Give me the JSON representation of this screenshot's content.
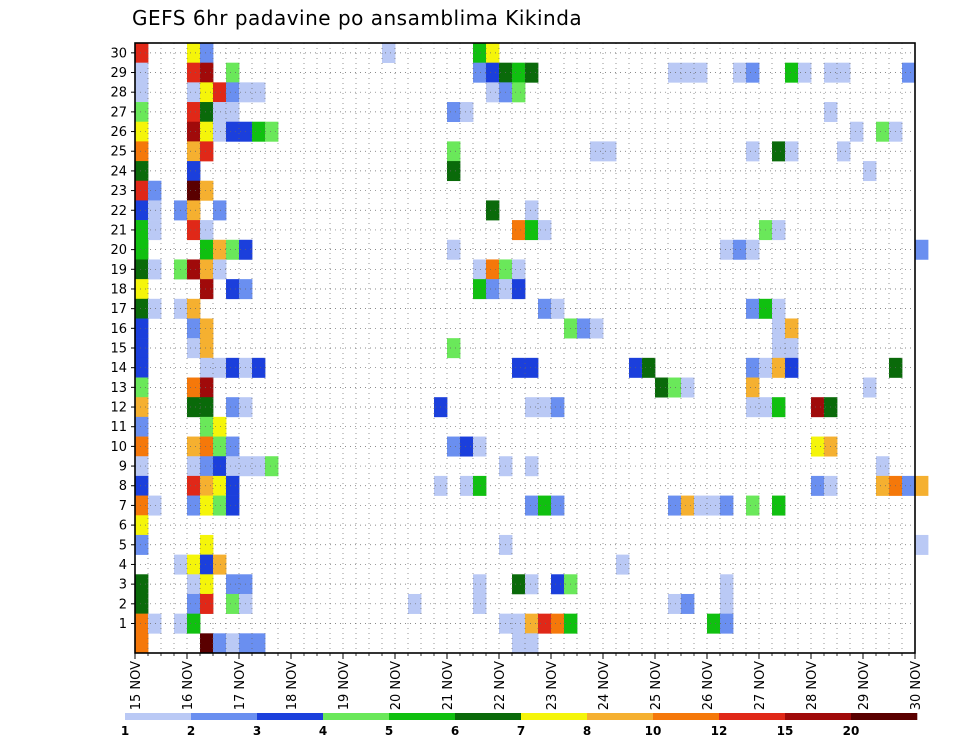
{
  "chart_data": {
    "type": "heatmap",
    "title": "GEFS 6hr padavine po ansamblima Kikinda",
    "x_ticks": [
      "15 NOV",
      "16 NOV",
      "17 NOV",
      "18 NOV",
      "19 NOV",
      "20 NOV",
      "21 NOV",
      "22 NOV",
      "23 NOV",
      "24 NOV",
      "25 NOV",
      "26 NOV",
      "27 NOV",
      "28 NOV",
      "29 NOV",
      "30 NOV"
    ],
    "xlim": [
      "15 NOV 00Z",
      "30 NOV 00Z"
    ],
    "time_step_hours": 6,
    "y_ticks": [
      "1",
      "2",
      "3",
      "4",
      "5",
      "6",
      "7",
      "8",
      "9",
      "10",
      "11",
      "12",
      "13",
      "14",
      "15",
      "16",
      "17",
      "18",
      "19",
      "20",
      "21",
      "22",
      "23",
      "24",
      "25",
      "26",
      "27",
      "28",
      "29",
      "30"
    ],
    "ylim": [
      0,
      30
    ],
    "grid": true,
    "colorbar": {
      "levels": [
        1,
        2,
        3,
        4,
        5,
        6,
        7,
        8,
        10,
        12,
        15,
        20
      ],
      "labels": [
        "1",
        "2",
        "3",
        "4",
        "5",
        "6",
        "7",
        "8",
        "10",
        "12",
        "15",
        "20"
      ],
      "colors": [
        "#bac9f5",
        "#6a8ff0",
        "#1b3fdc",
        "#6ae85a",
        "#10c010",
        "#0a6a0a",
        "#f5f50a",
        "#f5b030",
        "#f5780a",
        "#e02818",
        "#a00a0a",
        "#5a0000"
      ]
    },
    "series": [
      {
        "member": 30,
        "cells": [
          [
            0,
            9
          ],
          [
            4,
            6
          ],
          [
            5,
            1
          ],
          [
            19,
            0
          ],
          [
            26,
            4
          ],
          [
            27,
            6
          ]
        ]
      },
      {
        "member": 29,
        "cells": [
          [
            0,
            0
          ],
          [
            4,
            9
          ],
          [
            5,
            10
          ],
          [
            7,
            3
          ],
          [
            26,
            1
          ],
          [
            27,
            2
          ],
          [
            28,
            5
          ],
          [
            29,
            4
          ],
          [
            30,
            5
          ],
          [
            41,
            0
          ],
          [
            42,
            0
          ],
          [
            43,
            0
          ],
          [
            46,
            0
          ],
          [
            47,
            1
          ],
          [
            50,
            4
          ],
          [
            51,
            0
          ],
          [
            53,
            0
          ],
          [
            54,
            0
          ],
          [
            59,
            1
          ]
        ]
      },
      {
        "member": 28,
        "cells": [
          [
            0,
            0
          ],
          [
            4,
            0
          ],
          [
            5,
            6
          ],
          [
            6,
            9
          ],
          [
            7,
            1
          ],
          [
            8,
            0
          ],
          [
            9,
            0
          ],
          [
            27,
            0
          ],
          [
            28,
            1
          ],
          [
            29,
            3
          ]
        ]
      },
      {
        "member": 27,
        "cells": [
          [
            0,
            3
          ],
          [
            4,
            9
          ],
          [
            5,
            5
          ],
          [
            6,
            0
          ],
          [
            7,
            0
          ],
          [
            24,
            1
          ],
          [
            25,
            0
          ],
          [
            53,
            0
          ]
        ]
      },
      {
        "member": 26,
        "cells": [
          [
            0,
            6
          ],
          [
            4,
            10
          ],
          [
            5,
            6
          ],
          [
            6,
            0
          ],
          [
            7,
            2
          ],
          [
            8,
            2
          ],
          [
            9,
            4
          ],
          [
            10,
            3
          ],
          [
            55,
            0
          ],
          [
            57,
            3
          ],
          [
            58,
            0
          ]
        ]
      },
      {
        "member": 25,
        "cells": [
          [
            0,
            8
          ],
          [
            4,
            7
          ],
          [
            5,
            9
          ],
          [
            24,
            3
          ],
          [
            35,
            0
          ],
          [
            36,
            0
          ],
          [
            47,
            0
          ],
          [
            49,
            5
          ],
          [
            50,
            0
          ],
          [
            54,
            0
          ]
        ]
      },
      {
        "member": 24,
        "cells": [
          [
            0,
            5
          ],
          [
            4,
            2
          ],
          [
            24,
            5
          ],
          [
            56,
            0
          ]
        ]
      },
      {
        "member": 23,
        "cells": [
          [
            0,
            9
          ],
          [
            1,
            1
          ],
          [
            4,
            11
          ],
          [
            5,
            7
          ]
        ]
      },
      {
        "member": 22,
        "cells": [
          [
            0,
            2
          ],
          [
            1,
            0
          ],
          [
            3,
            1
          ],
          [
            4,
            7
          ],
          [
            6,
            1
          ],
          [
            27,
            5
          ],
          [
            30,
            0
          ]
        ]
      },
      {
        "member": 21,
        "cells": [
          [
            0,
            4
          ],
          [
            1,
            0
          ],
          [
            4,
            9
          ],
          [
            5,
            0
          ],
          [
            29,
            8
          ],
          [
            30,
            4
          ],
          [
            31,
            0
          ],
          [
            48,
            3
          ],
          [
            49,
            0
          ]
        ]
      },
      {
        "member": 20,
        "cells": [
          [
            0,
            4
          ],
          [
            5,
            4
          ],
          [
            6,
            7
          ],
          [
            7,
            3
          ],
          [
            8,
            2
          ],
          [
            24,
            0
          ],
          [
            45,
            0
          ],
          [
            46,
            1
          ],
          [
            47,
            0
          ],
          [
            60,
            1
          ]
        ]
      },
      {
        "member": 19,
        "cells": [
          [
            0,
            5
          ],
          [
            1,
            0
          ],
          [
            3,
            3
          ],
          [
            4,
            10
          ],
          [
            5,
            7
          ],
          [
            6,
            0
          ],
          [
            26,
            0
          ],
          [
            27,
            8
          ],
          [
            28,
            3
          ],
          [
            29,
            0
          ]
        ]
      },
      {
        "member": 18,
        "cells": [
          [
            0,
            6
          ],
          [
            5,
            10
          ],
          [
            7,
            2
          ],
          [
            8,
            1
          ],
          [
            26,
            4
          ],
          [
            27,
            1
          ],
          [
            28,
            0
          ],
          [
            29,
            2
          ]
        ]
      },
      {
        "member": 17,
        "cells": [
          [
            0,
            5
          ],
          [
            1,
            0
          ],
          [
            3,
            0
          ],
          [
            4,
            7
          ],
          [
            31,
            1
          ],
          [
            32,
            0
          ],
          [
            47,
            1
          ],
          [
            48,
            4
          ],
          [
            49,
            0
          ]
        ]
      },
      {
        "member": 16,
        "cells": [
          [
            0,
            2
          ],
          [
            4,
            1
          ],
          [
            5,
            7
          ],
          [
            33,
            3
          ],
          [
            34,
            1
          ],
          [
            35,
            0
          ],
          [
            49,
            0
          ],
          [
            50,
            7
          ]
        ]
      },
      {
        "member": 15,
        "cells": [
          [
            0,
            2
          ],
          [
            4,
            0
          ],
          [
            5,
            7
          ],
          [
            24,
            3
          ],
          [
            49,
            0
          ],
          [
            50,
            0
          ]
        ]
      },
      {
        "member": 14,
        "cells": [
          [
            0,
            2
          ],
          [
            5,
            0
          ],
          [
            6,
            0
          ],
          [
            7,
            2
          ],
          [
            8,
            0
          ],
          [
            9,
            2
          ],
          [
            29,
            2
          ],
          [
            30,
            2
          ],
          [
            38,
            2
          ],
          [
            39,
            5
          ],
          [
            47,
            1
          ],
          [
            48,
            0
          ],
          [
            49,
            7
          ],
          [
            50,
            2
          ],
          [
            58,
            5
          ]
        ]
      },
      {
        "member": 13,
        "cells": [
          [
            0,
            3
          ],
          [
            4,
            8
          ],
          [
            5,
            10
          ],
          [
            40,
            5
          ],
          [
            41,
            3
          ],
          [
            42,
            0
          ],
          [
            47,
            7
          ],
          [
            56,
            0
          ]
        ]
      },
      {
        "member": 12,
        "cells": [
          [
            0,
            7
          ],
          [
            4,
            5
          ],
          [
            5,
            5
          ],
          [
            7,
            1
          ],
          [
            8,
            0
          ],
          [
            23,
            2
          ],
          [
            30,
            0
          ],
          [
            31,
            0
          ],
          [
            32,
            1
          ],
          [
            47,
            0
          ],
          [
            48,
            0
          ],
          [
            49,
            4
          ],
          [
            52,
            10
          ],
          [
            53,
            5
          ]
        ]
      },
      {
        "member": 11,
        "cells": [
          [
            0,
            1
          ],
          [
            5,
            3
          ],
          [
            6,
            6
          ]
        ]
      },
      {
        "member": 10,
        "cells": [
          [
            0,
            8
          ],
          [
            4,
            7
          ],
          [
            5,
            8
          ],
          [
            6,
            3
          ],
          [
            7,
            1
          ],
          [
            24,
            1
          ],
          [
            25,
            2
          ],
          [
            26,
            0
          ],
          [
            52,
            6
          ],
          [
            53,
            7
          ]
        ]
      },
      {
        "member": 9,
        "cells": [
          [
            0,
            0
          ],
          [
            4,
            0
          ],
          [
            5,
            1
          ],
          [
            6,
            2
          ],
          [
            7,
            0
          ],
          [
            8,
            0
          ],
          [
            9,
            0
          ],
          [
            10,
            3
          ],
          [
            28,
            0
          ],
          [
            30,
            0
          ],
          [
            57,
            0
          ]
        ]
      },
      {
        "member": 8,
        "cells": [
          [
            0,
            2
          ],
          [
            4,
            9
          ],
          [
            5,
            7
          ],
          [
            6,
            6
          ],
          [
            7,
            2
          ],
          [
            23,
            0
          ],
          [
            25,
            0
          ],
          [
            26,
            4
          ],
          [
            52,
            1
          ],
          [
            53,
            0
          ],
          [
            57,
            7
          ],
          [
            58,
            8
          ],
          [
            59,
            1
          ],
          [
            60,
            7
          ]
        ]
      },
      {
        "member": 7,
        "cells": [
          [
            0,
            8
          ],
          [
            1,
            0
          ],
          [
            4,
            1
          ],
          [
            5,
            6
          ],
          [
            6,
            3
          ],
          [
            7,
            2
          ],
          [
            30,
            1
          ],
          [
            31,
            4
          ],
          [
            32,
            1
          ],
          [
            41,
            1
          ],
          [
            42,
            7
          ],
          [
            43,
            0
          ],
          [
            44,
            0
          ],
          [
            45,
            1
          ],
          [
            47,
            3
          ],
          [
            49,
            4
          ]
        ]
      },
      {
        "member": 6,
        "cells": [
          [
            0,
            6
          ]
        ]
      },
      {
        "member": 5,
        "cells": [
          [
            0,
            1
          ],
          [
            5,
            6
          ],
          [
            28,
            0
          ],
          [
            60,
            0
          ]
        ]
      },
      {
        "member": 4,
        "cells": [
          [
            3,
            0
          ],
          [
            4,
            6
          ],
          [
            5,
            2
          ],
          [
            6,
            7
          ],
          [
            37,
            0
          ]
        ]
      },
      {
        "member": 3,
        "cells": [
          [
            0,
            5
          ],
          [
            4,
            0
          ],
          [
            5,
            6
          ],
          [
            7,
            1
          ],
          [
            8,
            1
          ],
          [
            26,
            0
          ],
          [
            29,
            5
          ],
          [
            30,
            0
          ],
          [
            32,
            2
          ],
          [
            33,
            3
          ],
          [
            45,
            0
          ]
        ]
      },
      {
        "member": 2,
        "cells": [
          [
            0,
            5
          ],
          [
            4,
            1
          ],
          [
            5,
            9
          ],
          [
            7,
            3
          ],
          [
            8,
            0
          ],
          [
            21,
            0
          ],
          [
            26,
            0
          ],
          [
            41,
            0
          ],
          [
            42,
            1
          ],
          [
            45,
            0
          ]
        ]
      },
      {
        "member": 1,
        "cells": [
          [
            0,
            8
          ],
          [
            1,
            0
          ],
          [
            3,
            0
          ],
          [
            4,
            4
          ],
          [
            28,
            0
          ],
          [
            29,
            0
          ],
          [
            30,
            7
          ],
          [
            31,
            9
          ],
          [
            32,
            8
          ],
          [
            33,
            4
          ],
          [
            44,
            4
          ],
          [
            45,
            1
          ]
        ]
      },
      {
        "member": 0,
        "cells": [
          [
            0,
            8
          ],
          [
            5,
            11
          ],
          [
            6,
            1
          ],
          [
            7,
            0
          ],
          [
            8,
            1
          ],
          [
            9,
            1
          ],
          [
            29,
            0
          ],
          [
            30,
            0
          ]
        ]
      }
    ]
  }
}
